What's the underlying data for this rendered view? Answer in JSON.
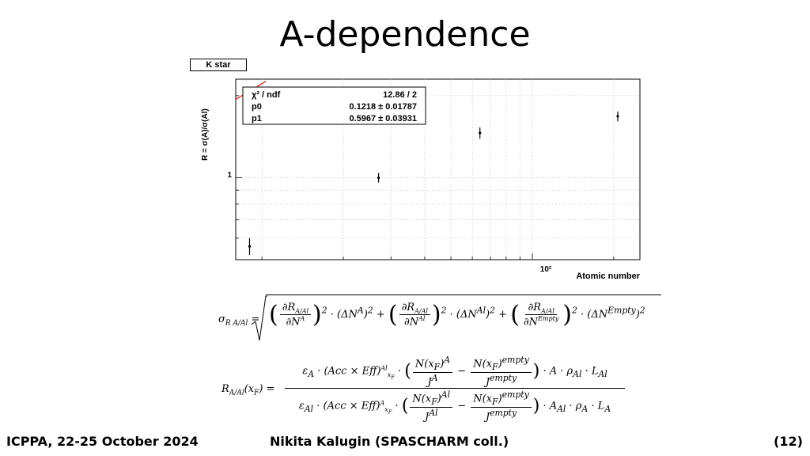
{
  "slide": {
    "title": "A-dependence",
    "plot_label": "K star",
    "footer_left": "ICPPA, 22-25 October 2024",
    "footer_center": "Nikita Kalugin (SPASCHARM coll.)",
    "footer_right": "(12)"
  },
  "chart_data": {
    "type": "scatter",
    "title": "K star",
    "xlabel": "Atomic number",
    "ylabel": "R = σ(A)/σ(Al)",
    "x_scale": "log",
    "y_scale": "log",
    "xlim": [
      8,
      250
    ],
    "ylim": [
      0.5,
      2.3
    ],
    "x_tick_label": "10²",
    "y_tick_label": "1",
    "grid": true,
    "series": [
      {
        "x": [
          9,
          27,
          64,
          207
        ],
        "y": [
          0.56,
          1.0,
          1.46,
          1.68
        ],
        "yerr": [
          0.04,
          0.04,
          0.07,
          0.07
        ]
      }
    ],
    "fit": {
      "function": "p0 * A^p1",
      "color": "#e0201f",
      "p0": 0.1218,
      "p1": 0.5967
    },
    "stats_box": {
      "rows": [
        {
          "name": "χ² / ndf",
          "value": "12.86 / 2"
        },
        {
          "name": "p0",
          "value": "0.1218 ± 0.01787"
        },
        {
          "name": "p1",
          "value": "0.5967 ± 0.03931"
        }
      ]
    }
  }
}
